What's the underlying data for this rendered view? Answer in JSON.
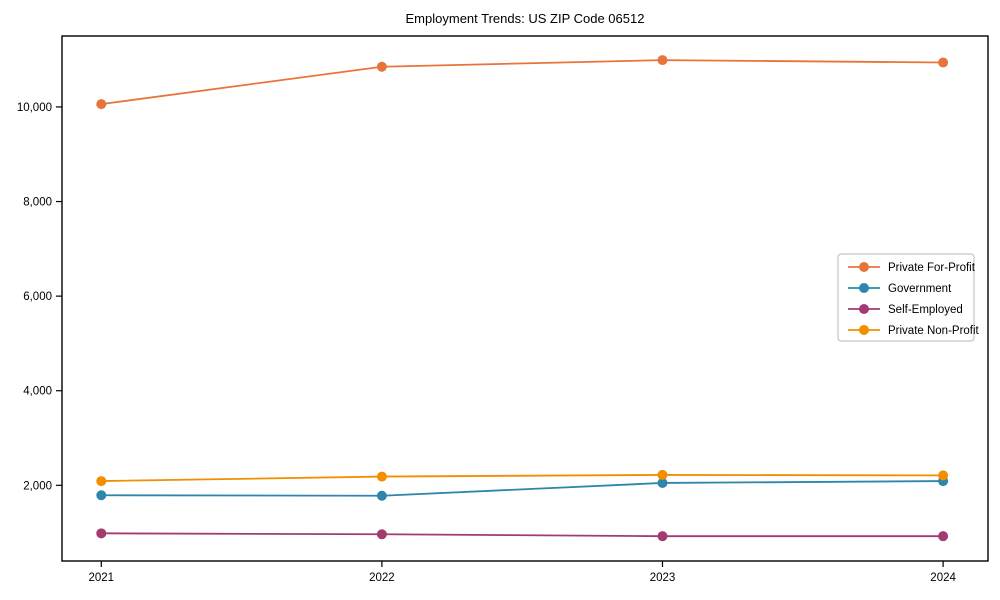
{
  "header": {
    "title": "Employment Trends: US ZIP Code 06512"
  },
  "chart_data": {
    "type": "line",
    "title": "Employment Trends: US ZIP Code 06512",
    "xlabel": "",
    "ylabel": "",
    "x": [
      2021,
      2022,
      2023,
      2024
    ],
    "x_tick_labels": [
      "2021",
      "2022",
      "2023",
      "2024"
    ],
    "series": [
      {
        "name": "Private For-Profit",
        "color": "#E8743B",
        "values": [
          10060,
          10850,
          10990,
          10940
        ]
      },
      {
        "name": "Government",
        "color": "#2E86AB",
        "values": [
          1790,
          1780,
          2050,
          2090
        ]
      },
      {
        "name": "Self-Employed",
        "color": "#A23B72",
        "values": [
          985,
          965,
          925,
          925
        ]
      },
      {
        "name": "Private Non-Profit",
        "color": "#F18F01",
        "values": [
          2090,
          2185,
          2220,
          2210
        ]
      }
    ],
    "y_ticks": [
      2000,
      4000,
      6000,
      8000,
      10000
    ],
    "y_tick_labels": [
      "2,000",
      "4,000",
      "6,000",
      "8,000",
      "10,000"
    ],
    "xlim": [
      2020.86,
      2024.16
    ],
    "ylim": [
      400,
      11500
    ],
    "grid": false,
    "legend_position": "center-right",
    "marker": "circle",
    "axis_color": "#000000",
    "background_color": "#ffffff",
    "legend_border_color": "#b8b8b8"
  }
}
